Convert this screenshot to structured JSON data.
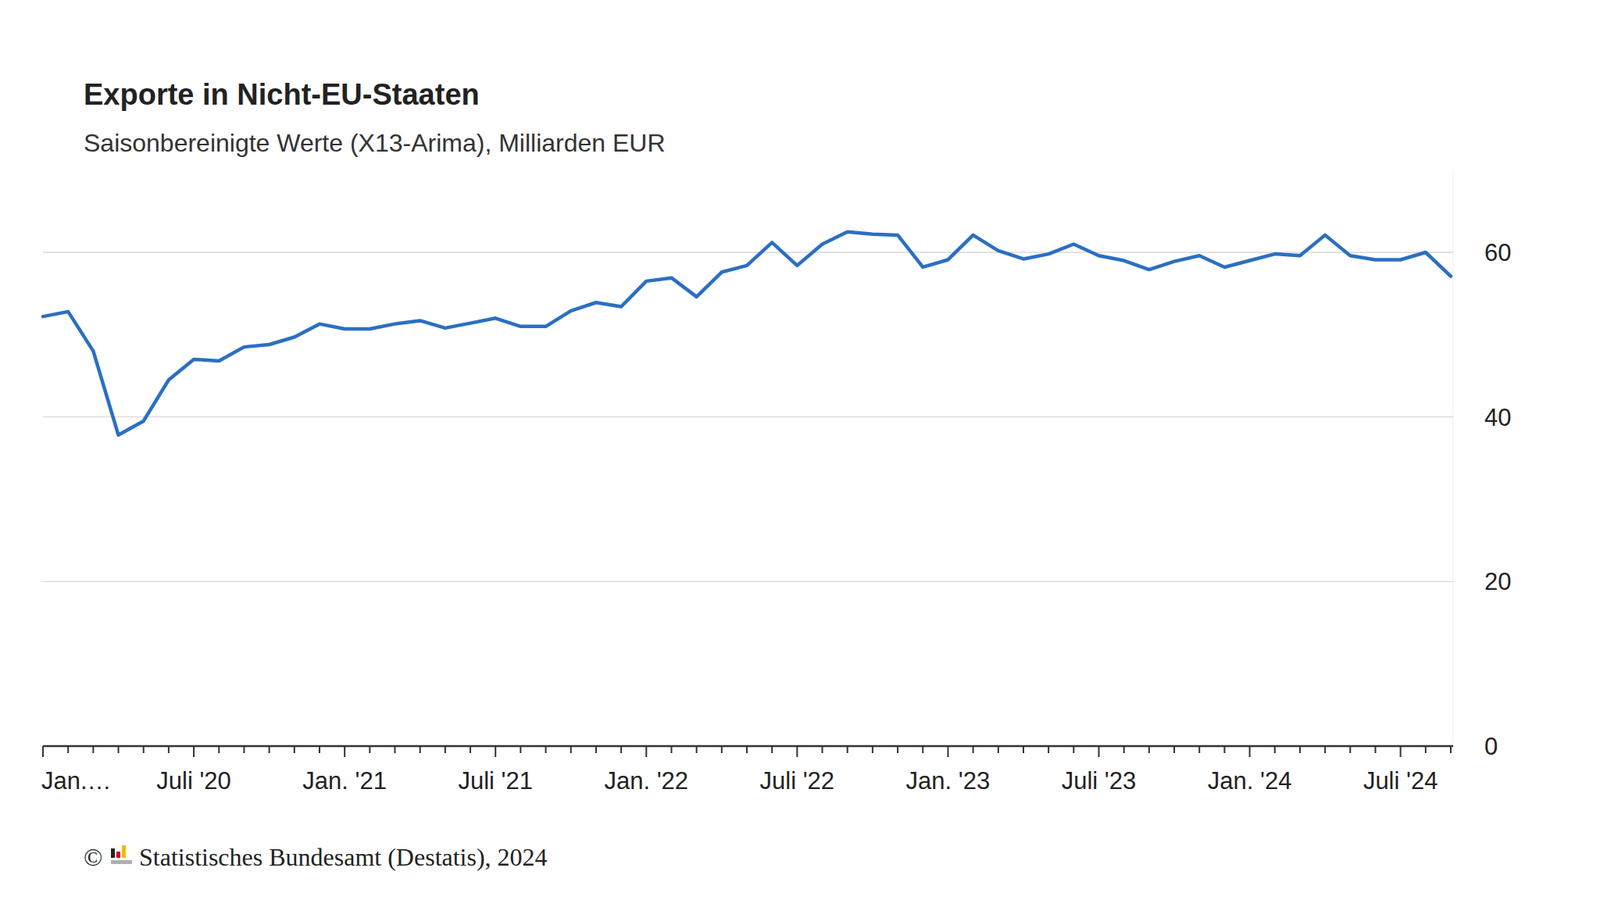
{
  "chart_data": {
    "type": "line",
    "title": "Exporte in Nicht-EU-Staaten",
    "subtitle": "Saisonbereinigte Werte (X13-Arima), Milliarden EUR",
    "credit_symbol": "©",
    "credit": "Statistisches Bundesamt (Destatis), 2024",
    "categories": [
      "Jan.…",
      null,
      null,
      null,
      null,
      null,
      "Juli '20",
      null,
      null,
      null,
      null,
      null,
      "Jan. '21",
      null,
      null,
      null,
      null,
      null,
      "Juli '21",
      null,
      null,
      null,
      null,
      null,
      "Jan. '22",
      null,
      null,
      null,
      null,
      null,
      "Juli '22",
      null,
      null,
      null,
      null,
      null,
      "Jan. '23",
      null,
      null,
      null,
      null,
      null,
      "Juli '23",
      null,
      null,
      null,
      null,
      null,
      "Jan. '24",
      null,
      null,
      null,
      null,
      null,
      "Juli '24",
      null,
      null
    ],
    "series": [
      {
        "name": "Exporte in Nicht-EU-Staaten",
        "color": "#2b6fc2",
        "values": [
          52.2,
          52.8,
          48.0,
          37.8,
          39.5,
          44.5,
          47.0,
          46.8,
          48.5,
          48.8,
          49.7,
          51.3,
          50.7,
          50.7,
          51.3,
          51.7,
          50.8,
          51.4,
          52.0,
          51.0,
          51.0,
          52.9,
          53.9,
          53.4,
          56.5,
          56.9,
          54.6,
          57.6,
          58.4,
          61.2,
          58.4,
          61.0,
          62.5,
          62.2,
          62.1,
          58.2,
          59.1,
          62.1,
          60.2,
          59.2,
          59.8,
          61.0,
          59.6,
          59.0,
          57.9,
          58.9,
          59.6,
          58.2,
          59.0,
          59.8,
          59.6,
          62.1,
          59.6,
          59.1,
          59.1,
          60.0,
          57.1
        ]
      }
    ],
    "ylim": [
      0,
      70
    ],
    "yticks": [
      0,
      20,
      40,
      60
    ],
    "grid": true
  }
}
